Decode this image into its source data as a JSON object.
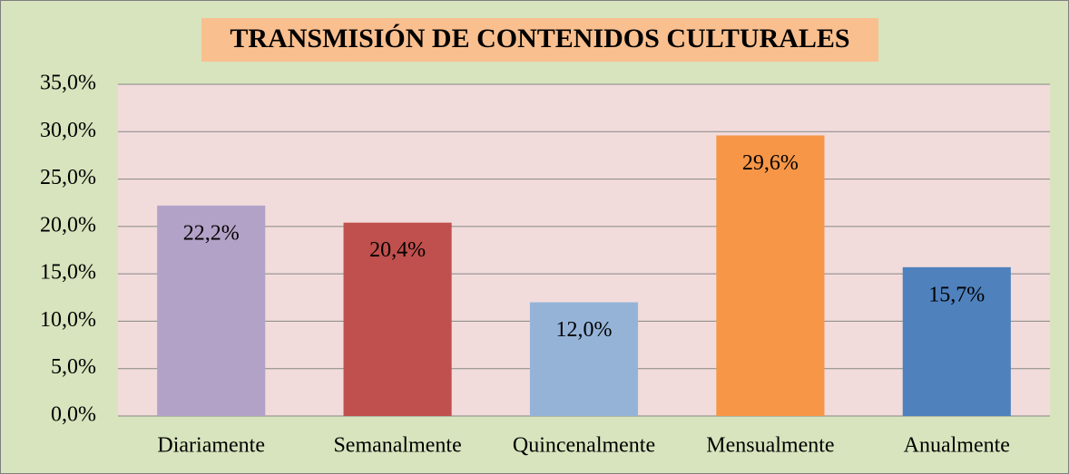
{
  "chart_data": {
    "type": "bar",
    "title": "TRANSMISIÓN DE CONTENIDOS CULTURALES",
    "categories": [
      "Diariamente",
      "Semanalmente",
      "Quincenalmente",
      "Mensualmente",
      "Anualmente"
    ],
    "values": [
      22.2,
      20.4,
      12.0,
      29.6,
      15.7
    ],
    "value_labels": [
      "22,2%",
      "20,4%",
      "12,0%",
      "29,6%",
      "15,7%"
    ],
    "colors": [
      "#b3a2c7",
      "#c0504d",
      "#95b3d7",
      "#f79646",
      "#4f81bd"
    ],
    "ylim": [
      0,
      35
    ],
    "yticks": [
      {
        "value": 0,
        "label": "0,0%"
      },
      {
        "value": 5,
        "label": "5,0%"
      },
      {
        "value": 10,
        "label": "10,0%"
      },
      {
        "value": 15,
        "label": "15,0%"
      },
      {
        "value": 20,
        "label": "20,0%"
      },
      {
        "value": 25,
        "label": "25,0%"
      },
      {
        "value": 30,
        "label": "30,0%"
      },
      {
        "value": 35,
        "label": "35,0%"
      }
    ],
    "grid": true
  }
}
